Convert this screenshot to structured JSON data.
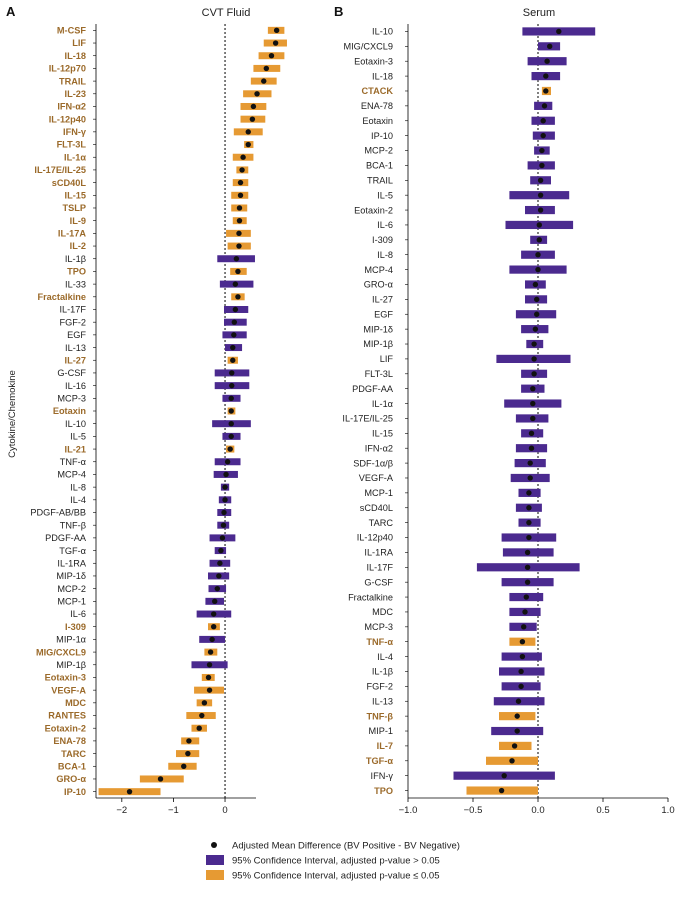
{
  "colors": {
    "nonsig": "#4b2a8f",
    "sig": "#e69a33",
    "sig_label": "#9b6a2a",
    "label": "#222222",
    "point": "#111111"
  },
  "chart_data": [
    {
      "type": "forest",
      "panel_letter": "A",
      "title": "CVT Fluid",
      "ylabel": "Cytokine/Chemokine",
      "xlim": [
        -2.5,
        0.6
      ],
      "xticks": [
        -2,
        -1,
        0
      ],
      "reference_line": 0,
      "rows": [
        {
          "label": "M-CSF",
          "mean": 1.0,
          "lo": 0.83,
          "hi": 1.15,
          "sig": true
        },
        {
          "label": "LIF",
          "mean": 0.98,
          "lo": 0.75,
          "hi": 1.2,
          "sig": true
        },
        {
          "label": "IL-18",
          "mean": 0.9,
          "lo": 0.65,
          "hi": 1.15,
          "sig": true
        },
        {
          "label": "IL-12p70",
          "mean": 0.8,
          "lo": 0.55,
          "hi": 1.07,
          "sig": true
        },
        {
          "label": "TRAIL",
          "mean": 0.75,
          "lo": 0.5,
          "hi": 1.0,
          "sig": true
        },
        {
          "label": "IL-23",
          "mean": 0.62,
          "lo": 0.35,
          "hi": 0.9,
          "sig": true
        },
        {
          "label": "IFN-α2",
          "mean": 0.55,
          "lo": 0.3,
          "hi": 0.8,
          "sig": true
        },
        {
          "label": "IL-12p40",
          "mean": 0.53,
          "lo": 0.3,
          "hi": 0.78,
          "sig": true
        },
        {
          "label": "IFN-γ",
          "mean": 0.45,
          "lo": 0.17,
          "hi": 0.73,
          "sig": true
        },
        {
          "label": "FLT-3L",
          "mean": 0.45,
          "lo": 0.37,
          "hi": 0.55,
          "sig": true
        },
        {
          "label": "IL-1α",
          "mean": 0.35,
          "lo": 0.15,
          "hi": 0.55,
          "sig": true
        },
        {
          "label": "IL-17E/IL-25",
          "mean": 0.33,
          "lo": 0.22,
          "hi": 0.45,
          "sig": true
        },
        {
          "label": "sCD40L",
          "mean": 0.3,
          "lo": 0.15,
          "hi": 0.45,
          "sig": true
        },
        {
          "label": "IL-15",
          "mean": 0.3,
          "lo": 0.12,
          "hi": 0.45,
          "sig": true
        },
        {
          "label": "TSLP",
          "mean": 0.28,
          "lo": 0.12,
          "hi": 0.43,
          "sig": true
        },
        {
          "label": "IL-9",
          "mean": 0.28,
          "lo": 0.15,
          "hi": 0.42,
          "sig": true
        },
        {
          "label": "IL-17A",
          "mean": 0.27,
          "lo": 0.02,
          "hi": 0.5,
          "sig": true
        },
        {
          "label": "IL-2",
          "mean": 0.27,
          "lo": 0.05,
          "hi": 0.5,
          "sig": true
        },
        {
          "label": "IL-1β",
          "mean": 0.22,
          "lo": -0.15,
          "hi": 0.58,
          "sig": false
        },
        {
          "label": "TPO",
          "mean": 0.25,
          "lo": 0.1,
          "hi": 0.42,
          "sig": true
        },
        {
          "label": "IL-33",
          "mean": 0.2,
          "lo": -0.1,
          "hi": 0.55,
          "sig": false
        },
        {
          "label": "Fractalkine",
          "mean": 0.25,
          "lo": 0.12,
          "hi": 0.38,
          "sig": true
        },
        {
          "label": "IL-17F",
          "mean": 0.2,
          "lo": -0.02,
          "hi": 0.45,
          "sig": false
        },
        {
          "label": "FGF-2",
          "mean": 0.18,
          "lo": -0.02,
          "hi": 0.42,
          "sig": false
        },
        {
          "label": "EGF",
          "mean": 0.17,
          "lo": -0.05,
          "hi": 0.42,
          "sig": false
        },
        {
          "label": "IL-13",
          "mean": 0.15,
          "lo": 0.0,
          "hi": 0.33,
          "sig": false
        },
        {
          "label": "IL-27",
          "mean": 0.15,
          "lo": 0.05,
          "hi": 0.25,
          "sig": true
        },
        {
          "label": "G-CSF",
          "mean": 0.13,
          "lo": -0.2,
          "hi": 0.47,
          "sig": false
        },
        {
          "label": "IL-16",
          "mean": 0.13,
          "lo": -0.2,
          "hi": 0.47,
          "sig": false
        },
        {
          "label": "MCP-3",
          "mean": 0.12,
          "lo": -0.05,
          "hi": 0.3,
          "sig": false
        },
        {
          "label": "Eotaxin",
          "mean": 0.12,
          "lo": 0.05,
          "hi": 0.2,
          "sig": true
        },
        {
          "label": "IL-10",
          "mean": 0.12,
          "lo": -0.25,
          "hi": 0.5,
          "sig": false
        },
        {
          "label": "IL-5",
          "mean": 0.12,
          "lo": -0.05,
          "hi": 0.3,
          "sig": false
        },
        {
          "label": "IL-21",
          "mean": 0.1,
          "lo": 0.02,
          "hi": 0.18,
          "sig": true
        },
        {
          "label": "TNF-α",
          "mean": 0.05,
          "lo": -0.2,
          "hi": 0.3,
          "sig": false
        },
        {
          "label": "MCP-4",
          "mean": 0.02,
          "lo": -0.22,
          "hi": 0.25,
          "sig": false
        },
        {
          "label": "IL-8",
          "mean": 0.0,
          "lo": -0.08,
          "hi": 0.08,
          "sig": false
        },
        {
          "label": "IL-4",
          "mean": 0.0,
          "lo": -0.12,
          "hi": 0.12,
          "sig": false
        },
        {
          "label": "PDGF-AB/BB",
          "mean": -0.02,
          "lo": -0.15,
          "hi": 0.12,
          "sig": false
        },
        {
          "label": "TNF-β",
          "mean": -0.03,
          "lo": -0.15,
          "hi": 0.08,
          "sig": false
        },
        {
          "label": "PDGF-AA",
          "mean": -0.05,
          "lo": -0.3,
          "hi": 0.2,
          "sig": false
        },
        {
          "label": "TGF-α",
          "mean": -0.08,
          "lo": -0.2,
          "hi": 0.02,
          "sig": false
        },
        {
          "label": "IL-1RA",
          "mean": -0.1,
          "lo": -0.3,
          "hi": 0.1,
          "sig": false
        },
        {
          "label": "MIP-1δ",
          "mean": -0.12,
          "lo": -0.33,
          "hi": 0.08,
          "sig": false
        },
        {
          "label": "MCP-2",
          "mean": -0.15,
          "lo": -0.32,
          "hi": 0.02,
          "sig": false
        },
        {
          "label": "MCP-1",
          "mean": -0.2,
          "lo": -0.38,
          "hi": -0.02,
          "sig": false
        },
        {
          "label": "IL-6",
          "mean": -0.22,
          "lo": -0.55,
          "hi": 0.12,
          "sig": false
        },
        {
          "label": "I-309",
          "mean": -0.22,
          "lo": -0.33,
          "hi": -0.1,
          "sig": true
        },
        {
          "label": "MIP-1α",
          "mean": -0.25,
          "lo": -0.5,
          "hi": 0.0,
          "sig": false
        },
        {
          "label": "MIG/CXCL9",
          "mean": -0.28,
          "lo": -0.4,
          "hi": -0.15,
          "sig": true
        },
        {
          "label": "MIP-1β",
          "mean": -0.3,
          "lo": -0.65,
          "hi": 0.05,
          "sig": false
        },
        {
          "label": "Eotaxin-3",
          "mean": -0.32,
          "lo": -0.45,
          "hi": -0.2,
          "sig": true
        },
        {
          "label": "VEGF-A",
          "mean": -0.3,
          "lo": -0.6,
          "hi": -0.02,
          "sig": true
        },
        {
          "label": "MDC",
          "mean": -0.4,
          "lo": -0.55,
          "hi": -0.25,
          "sig": true
        },
        {
          "label": "RANTES",
          "mean": -0.45,
          "lo": -0.75,
          "hi": -0.18,
          "sig": true
        },
        {
          "label": "Eotaxin-2",
          "mean": -0.5,
          "lo": -0.65,
          "hi": -0.35,
          "sig": true
        },
        {
          "label": "ENA-78",
          "mean": -0.7,
          "lo": -0.85,
          "hi": -0.5,
          "sig": true
        },
        {
          "label": "TARC",
          "mean": -0.72,
          "lo": -0.95,
          "hi": -0.5,
          "sig": true
        },
        {
          "label": "BCA-1",
          "mean": -0.8,
          "lo": -1.1,
          "hi": -0.55,
          "sig": true
        },
        {
          "label": "GRO-α",
          "mean": -1.25,
          "lo": -1.65,
          "hi": -0.8,
          "sig": true
        },
        {
          "label": "IP-10",
          "mean": -1.85,
          "lo": -2.45,
          "hi": -1.25,
          "sig": true
        }
      ]
    },
    {
      "type": "forest",
      "panel_letter": "B",
      "title": "Serum",
      "xlim": [
        -1.0,
        1.0
      ],
      "xticks": [
        -1.0,
        -0.5,
        0.0,
        0.5,
        1.0
      ],
      "xtick_labels": [
        "-1.0",
        "-0.5",
        "0.0",
        "0.5",
        "1.0"
      ],
      "reference_line": 0,
      "rows": [
        {
          "label": "IL-10",
          "mean": 0.16,
          "lo": -0.12,
          "hi": 0.44,
          "sig": false
        },
        {
          "label": "MIG/CXCL9",
          "mean": 0.09,
          "lo": 0.0,
          "hi": 0.17,
          "sig": false
        },
        {
          "label": "Eotaxin-3",
          "mean": 0.07,
          "lo": -0.08,
          "hi": 0.22,
          "sig": false
        },
        {
          "label": "IL-18",
          "mean": 0.06,
          "lo": -0.05,
          "hi": 0.17,
          "sig": false
        },
        {
          "label": "CTACK",
          "mean": 0.06,
          "lo": 0.03,
          "hi": 0.1,
          "sig": true
        },
        {
          "label": "ENA-78",
          "mean": 0.05,
          "lo": -0.03,
          "hi": 0.11,
          "sig": false
        },
        {
          "label": "Eotaxin",
          "mean": 0.04,
          "lo": -0.05,
          "hi": 0.13,
          "sig": false
        },
        {
          "label": "IP-10",
          "mean": 0.04,
          "lo": -0.04,
          "hi": 0.13,
          "sig": false
        },
        {
          "label": "MCP-2",
          "mean": 0.03,
          "lo": -0.03,
          "hi": 0.09,
          "sig": false
        },
        {
          "label": "BCA-1",
          "mean": 0.03,
          "lo": -0.08,
          "hi": 0.13,
          "sig": false
        },
        {
          "label": "TRAIL",
          "mean": 0.02,
          "lo": -0.06,
          "hi": 0.1,
          "sig": false
        },
        {
          "label": "IL-5",
          "mean": 0.02,
          "lo": -0.22,
          "hi": 0.24,
          "sig": false
        },
        {
          "label": "Eotaxin-2",
          "mean": 0.02,
          "lo": -0.1,
          "hi": 0.13,
          "sig": false
        },
        {
          "label": "IL-6",
          "mean": 0.01,
          "lo": -0.25,
          "hi": 0.27,
          "sig": false
        },
        {
          "label": "I-309",
          "mean": 0.01,
          "lo": -0.06,
          "hi": 0.07,
          "sig": false
        },
        {
          "label": "IL-8",
          "mean": 0.0,
          "lo": -0.13,
          "hi": 0.13,
          "sig": false
        },
        {
          "label": "MCP-4",
          "mean": 0.0,
          "lo": -0.22,
          "hi": 0.22,
          "sig": false
        },
        {
          "label": "GRO-α",
          "mean": -0.02,
          "lo": -0.1,
          "hi": 0.06,
          "sig": false
        },
        {
          "label": "IL-27",
          "mean": -0.01,
          "lo": -0.1,
          "hi": 0.07,
          "sig": false
        },
        {
          "label": "EGF",
          "mean": -0.01,
          "lo": -0.17,
          "hi": 0.14,
          "sig": false
        },
        {
          "label": "MIP-1δ",
          "mean": -0.02,
          "lo": -0.13,
          "hi": 0.08,
          "sig": false
        },
        {
          "label": "MIP-1β",
          "mean": -0.03,
          "lo": -0.09,
          "hi": 0.04,
          "sig": false
        },
        {
          "label": "LIF",
          "mean": -0.03,
          "lo": -0.32,
          "hi": 0.25,
          "sig": false
        },
        {
          "label": "FLT-3L",
          "mean": -0.03,
          "lo": -0.13,
          "hi": 0.07,
          "sig": false
        },
        {
          "label": "PDGF-AA",
          "mean": -0.04,
          "lo": -0.13,
          "hi": 0.05,
          "sig": false
        },
        {
          "label": "IL-1α",
          "mean": -0.04,
          "lo": -0.26,
          "hi": 0.18,
          "sig": false
        },
        {
          "label": "IL-17E/IL-25",
          "mean": -0.04,
          "lo": -0.17,
          "hi": 0.08,
          "sig": false
        },
        {
          "label": "IL-15",
          "mean": -0.05,
          "lo": -0.13,
          "hi": 0.04,
          "sig": false
        },
        {
          "label": "IFN-α2",
          "mean": -0.05,
          "lo": -0.17,
          "hi": 0.07,
          "sig": false
        },
        {
          "label": "SDF-1α/β",
          "mean": -0.06,
          "lo": -0.18,
          "hi": 0.06,
          "sig": false
        },
        {
          "label": "VEGF-A",
          "mean": -0.06,
          "lo": -0.21,
          "hi": 0.09,
          "sig": false
        },
        {
          "label": "MCP-1",
          "mean": -0.07,
          "lo": -0.15,
          "hi": 0.02,
          "sig": false
        },
        {
          "label": "sCD40L",
          "mean": -0.07,
          "lo": -0.17,
          "hi": 0.03,
          "sig": false
        },
        {
          "label": "TARC",
          "mean": -0.07,
          "lo": -0.15,
          "hi": 0.02,
          "sig": false
        },
        {
          "label": "IL-12p40",
          "mean": -0.07,
          "lo": -0.28,
          "hi": 0.14,
          "sig": false
        },
        {
          "label": "IL-1RA",
          "mean": -0.08,
          "lo": -0.27,
          "hi": 0.12,
          "sig": false
        },
        {
          "label": "IL-17F",
          "mean": -0.08,
          "lo": -0.47,
          "hi": 0.32,
          "sig": false
        },
        {
          "label": "G-CSF",
          "mean": -0.08,
          "lo": -0.28,
          "hi": 0.12,
          "sig": false
        },
        {
          "label": "Fractalkine",
          "mean": -0.09,
          "lo": -0.22,
          "hi": 0.04,
          "sig": false
        },
        {
          "label": "MDC",
          "mean": -0.1,
          "lo": -0.22,
          "hi": 0.02,
          "sig": false
        },
        {
          "label": "MCP-3",
          "mean": -0.11,
          "lo": -0.22,
          "hi": -0.01,
          "sig": false
        },
        {
          "label": "TNF-α",
          "mean": -0.12,
          "lo": -0.22,
          "hi": -0.02,
          "sig": true
        },
        {
          "label": "IL-4",
          "mean": -0.12,
          "lo": -0.28,
          "hi": 0.03,
          "sig": false
        },
        {
          "label": "IL-1β",
          "mean": -0.13,
          "lo": -0.3,
          "hi": 0.05,
          "sig": false
        },
        {
          "label": "FGF-2",
          "mean": -0.13,
          "lo": -0.28,
          "hi": 0.02,
          "sig": false
        },
        {
          "label": "IL-13",
          "mean": -0.15,
          "lo": -0.34,
          "hi": 0.05,
          "sig": false
        },
        {
          "label": "TNF-β",
          "mean": -0.16,
          "lo": -0.3,
          "hi": -0.02,
          "sig": true
        },
        {
          "label": "MIP-1",
          "mean": -0.16,
          "lo": -0.36,
          "hi": 0.04,
          "sig": false
        },
        {
          "label": "IL-7",
          "mean": -0.18,
          "lo": -0.3,
          "hi": -0.05,
          "sig": true
        },
        {
          "label": "TGF-α",
          "mean": -0.2,
          "lo": -0.4,
          "hi": 0.0,
          "sig": true
        },
        {
          "label": "IFN-γ",
          "mean": -0.26,
          "lo": -0.65,
          "hi": 0.13,
          "sig": false
        },
        {
          "label": "TPO",
          "mean": -0.28,
          "lo": -0.55,
          "hi": 0.0,
          "sig": true
        }
      ]
    }
  ],
  "legend": [
    {
      "kind": "point",
      "label": "Adjusted Mean Difference (BV Positive - BV Negative)"
    },
    {
      "kind": "nonsig",
      "label": "95% Confidence Interval, adjusted p-value > 0.05"
    },
    {
      "kind": "sig",
      "label": "95% Confidence Interval, adjusted p-value ≤ 0.05"
    }
  ]
}
